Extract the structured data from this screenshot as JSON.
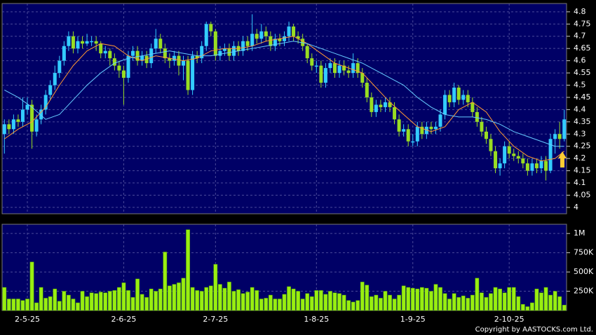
{
  "chart_data": [
    {
      "type": "candlestick",
      "up_color": "#33ccff",
      "down_color": "#99dd22",
      "open": [
        4.3,
        4.34,
        4.32,
        4.36,
        4.35,
        4.4,
        4.42,
        4.31,
        4.36,
        4.4,
        4.46,
        4.5,
        4.55,
        4.6,
        4.66,
        4.7,
        4.65,
        4.68,
        4.67,
        4.68,
        4.68,
        4.67,
        4.63,
        4.64,
        4.61,
        4.58,
        4.56,
        4.53,
        4.62,
        4.64,
        4.6,
        4.62,
        4.59,
        4.65,
        4.69,
        4.65,
        4.61,
        4.6,
        4.62,
        4.58,
        4.6,
        4.48,
        4.62,
        4.61,
        4.66,
        4.75,
        4.72,
        4.62,
        4.64,
        4.65,
        4.62,
        4.66,
        4.64,
        4.68,
        4.66,
        4.71,
        4.69,
        4.72,
        4.7,
        4.66,
        4.69,
        4.68,
        4.7,
        4.74,
        4.7,
        4.69,
        4.66,
        4.61,
        4.58,
        4.58,
        4.51,
        4.57,
        4.59,
        4.55,
        4.58,
        4.56,
        4.55,
        4.59,
        4.55,
        4.51,
        4.45,
        4.39,
        4.42,
        4.41,
        4.43,
        4.41,
        4.36,
        4.31,
        4.32,
        4.27,
        4.27,
        4.33,
        4.3,
        4.33,
        4.32,
        4.33,
        4.38,
        4.46,
        4.43,
        4.49,
        4.44,
        4.46,
        4.43,
        4.39,
        4.35,
        4.31,
        4.28,
        4.23,
        4.16,
        4.18,
        4.25,
        4.22,
        4.21,
        4.2,
        4.18,
        4.15,
        4.18,
        4.16,
        4.19,
        4.15,
        4.28,
        4.3,
        4.28
      ],
      "high": [
        4.36,
        4.36,
        4.38,
        4.38,
        4.45,
        4.45,
        4.44,
        4.38,
        4.42,
        4.48,
        4.52,
        4.58,
        4.62,
        4.68,
        4.72,
        4.72,
        4.7,
        4.7,
        4.71,
        4.7,
        4.7,
        4.68,
        4.66,
        4.65,
        4.63,
        4.6,
        4.58,
        4.64,
        4.66,
        4.66,
        4.64,
        4.64,
        4.67,
        4.73,
        4.71,
        4.67,
        4.63,
        4.64,
        4.64,
        4.62,
        4.62,
        4.64,
        4.64,
        4.68,
        4.76,
        4.76,
        4.73,
        4.66,
        4.67,
        4.67,
        4.68,
        4.68,
        4.7,
        4.7,
        4.79,
        4.73,
        4.75,
        4.74,
        4.72,
        4.71,
        4.71,
        4.72,
        4.76,
        4.75,
        4.72,
        4.71,
        4.67,
        4.63,
        4.6,
        4.6,
        4.59,
        4.61,
        4.61,
        4.6,
        4.6,
        4.58,
        4.63,
        4.61,
        4.57,
        4.53,
        4.47,
        4.44,
        4.44,
        4.45,
        4.45,
        4.43,
        4.38,
        4.34,
        4.34,
        4.3,
        4.35,
        4.35,
        4.35,
        4.35,
        4.35,
        4.4,
        4.48,
        4.48,
        4.51,
        4.5,
        4.48,
        4.48,
        4.45,
        4.41,
        4.37,
        4.33,
        4.3,
        4.25,
        4.2,
        4.27,
        4.27,
        4.24,
        4.23,
        4.22,
        4.2,
        4.2,
        4.2,
        4.21,
        4.21,
        4.3,
        4.32,
        4.35,
        4.4
      ],
      "low": [
        4.22,
        4.3,
        4.3,
        4.33,
        4.33,
        4.38,
        4.24,
        4.29,
        4.34,
        4.38,
        4.44,
        4.48,
        4.53,
        4.58,
        4.64,
        4.63,
        4.63,
        4.65,
        4.66,
        4.66,
        4.64,
        4.61,
        4.61,
        4.58,
        4.56,
        4.53,
        4.42,
        4.51,
        4.6,
        4.58,
        4.58,
        4.57,
        4.57,
        4.63,
        4.63,
        4.59,
        4.57,
        4.58,
        4.54,
        4.52,
        4.46,
        4.46,
        4.59,
        4.59,
        4.64,
        4.7,
        4.6,
        4.6,
        4.62,
        4.6,
        4.6,
        4.62,
        4.62,
        4.64,
        4.64,
        4.67,
        4.67,
        4.68,
        4.64,
        4.64,
        4.66,
        4.66,
        4.68,
        4.68,
        4.67,
        4.64,
        4.59,
        4.56,
        4.55,
        4.49,
        4.49,
        4.55,
        4.53,
        4.53,
        4.54,
        4.53,
        4.53,
        4.53,
        4.49,
        4.43,
        4.37,
        4.37,
        4.39,
        4.39,
        4.39,
        4.34,
        4.29,
        4.29,
        4.25,
        4.25,
        4.25,
        4.28,
        4.28,
        4.3,
        4.3,
        4.31,
        4.36,
        4.41,
        4.41,
        4.42,
        4.42,
        4.41,
        4.37,
        4.33,
        4.29,
        4.26,
        4.21,
        4.14,
        4.13,
        4.16,
        4.2,
        4.19,
        4.18,
        4.16,
        4.13,
        4.13,
        4.14,
        4.14,
        4.11,
        4.14,
        4.22,
        4.24,
        4.27
      ],
      "close": [
        4.34,
        4.32,
        4.36,
        4.35,
        4.4,
        4.42,
        4.31,
        4.36,
        4.4,
        4.46,
        4.5,
        4.55,
        4.6,
        4.66,
        4.7,
        4.65,
        4.68,
        4.67,
        4.68,
        4.68,
        4.67,
        4.63,
        4.64,
        4.61,
        4.58,
        4.56,
        4.53,
        4.62,
        4.64,
        4.6,
        4.62,
        4.59,
        4.65,
        4.69,
        4.65,
        4.61,
        4.6,
        4.62,
        4.58,
        4.6,
        4.48,
        4.62,
        4.61,
        4.66,
        4.75,
        4.72,
        4.62,
        4.64,
        4.65,
        4.62,
        4.66,
        4.64,
        4.68,
        4.66,
        4.71,
        4.69,
        4.72,
        4.7,
        4.66,
        4.69,
        4.68,
        4.7,
        4.74,
        4.7,
        4.69,
        4.66,
        4.61,
        4.58,
        4.58,
        4.51,
        4.57,
        4.59,
        4.55,
        4.58,
        4.56,
        4.55,
        4.59,
        4.55,
        4.51,
        4.45,
        4.39,
        4.42,
        4.41,
        4.43,
        4.41,
        4.36,
        4.31,
        4.32,
        4.27,
        4.27,
        4.33,
        4.3,
        4.33,
        4.32,
        4.33,
        4.38,
        4.46,
        4.43,
        4.49,
        4.44,
        4.46,
        4.43,
        4.39,
        4.35,
        4.31,
        4.28,
        4.23,
        4.16,
        4.18,
        4.25,
        4.22,
        4.21,
        4.2,
        4.18,
        4.15,
        4.18,
        4.16,
        4.19,
        4.15,
        4.28,
        4.3,
        4.28,
        4.36
      ],
      "lines": [
        {
          "color": "#ff9933",
          "x": [
            0,
            3,
            6,
            9,
            12,
            15,
            18,
            21,
            24,
            27,
            30,
            33,
            36,
            39,
            42,
            45,
            48,
            51,
            54,
            57,
            60,
            63,
            66,
            69,
            72,
            75,
            78,
            81,
            84,
            87,
            90,
            93,
            96,
            99,
            102,
            105,
            108,
            111,
            114,
            117,
            120,
            122
          ],
          "values": [
            4.28,
            4.32,
            4.35,
            4.41,
            4.5,
            4.58,
            4.64,
            4.67,
            4.66,
            4.62,
            4.6,
            4.62,
            4.61,
            4.6,
            4.61,
            4.64,
            4.65,
            4.65,
            4.66,
            4.68,
            4.69,
            4.7,
            4.67,
            4.63,
            4.59,
            4.57,
            4.55,
            4.49,
            4.43,
            4.38,
            4.33,
            4.31,
            4.33,
            4.4,
            4.43,
            4.39,
            4.31,
            4.25,
            4.21,
            4.19,
            4.2,
            4.23
          ]
        },
        {
          "color": "#66ccff",
          "x": [
            0,
            3,
            6,
            9,
            12,
            15,
            18,
            21,
            24,
            27,
            30,
            33,
            36,
            39,
            42,
            45,
            48,
            51,
            54,
            57,
            60,
            63,
            66,
            69,
            72,
            75,
            78,
            81,
            84,
            87,
            90,
            93,
            96,
            99,
            102,
            105,
            108,
            111,
            114,
            117,
            120,
            122
          ],
          "values": [
            4.48,
            4.45,
            4.41,
            4.36,
            4.38,
            4.44,
            4.5,
            4.55,
            4.59,
            4.61,
            4.62,
            4.63,
            4.64,
            4.63,
            4.62,
            4.62,
            4.63,
            4.64,
            4.65,
            4.66,
            4.67,
            4.68,
            4.67,
            4.65,
            4.63,
            4.61,
            4.59,
            4.56,
            4.53,
            4.5,
            4.45,
            4.41,
            4.38,
            4.37,
            4.37,
            4.36,
            4.34,
            4.31,
            4.29,
            4.27,
            4.25,
            4.25
          ]
        }
      ],
      "ylim": [
        3.974,
        4.834
      ],
      "yticks": [
        4,
        4.05,
        4.1,
        4.15,
        4.2,
        4.25,
        4.3,
        4.35,
        4.4,
        4.45,
        4.5,
        4.55,
        4.6,
        4.65,
        4.7,
        4.75,
        4.8
      ],
      "grid": true
    },
    {
      "type": "bar",
      "color": "#99ee11",
      "categories": [
        null,
        null,
        null,
        null,
        null,
        "2-5-25",
        null,
        null,
        null,
        null,
        null,
        null,
        null,
        null,
        null,
        null,
        null,
        null,
        null,
        null,
        null,
        null,
        null,
        null,
        null,
        null,
        "2-6-25",
        null,
        null,
        null,
        null,
        null,
        null,
        null,
        null,
        null,
        null,
        null,
        null,
        null,
        null,
        null,
        null,
        null,
        null,
        null,
        "2-7-25",
        null,
        null,
        null,
        null,
        null,
        null,
        null,
        null,
        null,
        null,
        null,
        null,
        null,
        null,
        null,
        null,
        null,
        null,
        null,
        null,
        null,
        "1-8-25",
        null,
        null,
        null,
        null,
        null,
        null,
        null,
        null,
        null,
        null,
        null,
        null,
        null,
        null,
        null,
        null,
        null,
        null,
        null,
        null,
        "1-9-25",
        null,
        null,
        null,
        null,
        null,
        null,
        null,
        null,
        null,
        null,
        null,
        null,
        null,
        null,
        null,
        null,
        null,
        null,
        null,
        null,
        "2-10-25",
        null,
        null,
        null,
        null,
        null,
        null,
        null,
        null,
        null,
        null,
        null,
        null
      ],
      "values": [
        300000,
        150000,
        150000,
        150000,
        130000,
        150000,
        630000,
        100000,
        300000,
        160000,
        180000,
        280000,
        120000,
        250000,
        200000,
        150000,
        100000,
        250000,
        180000,
        230000,
        220000,
        240000,
        230000,
        250000,
        260000,
        300000,
        360000,
        260000,
        170000,
        410000,
        210000,
        170000,
        280000,
        250000,
        280000,
        760000,
        320000,
        340000,
        360000,
        420000,
        1050000,
        300000,
        260000,
        250000,
        300000,
        320000,
        600000,
        340000,
        290000,
        370000,
        250000,
        270000,
        220000,
        240000,
        300000,
        260000,
        150000,
        160000,
        200000,
        150000,
        150000,
        210000,
        310000,
        280000,
        250000,
        150000,
        220000,
        180000,
        260000,
        260000,
        210000,
        250000,
        230000,
        220000,
        200000,
        130000,
        110000,
        130000,
        370000,
        330000,
        180000,
        200000,
        160000,
        250000,
        200000,
        150000,
        200000,
        320000,
        300000,
        290000,
        280000,
        300000,
        290000,
        250000,
        340000,
        300000,
        220000,
        150000,
        220000,
        170000,
        190000,
        160000,
        200000,
        420000,
        230000,
        170000,
        220000,
        300000,
        280000,
        230000,
        300000,
        300000,
        180000,
        80000,
        50000,
        100000,
        280000,
        230000,
        300000,
        200000,
        250000,
        180000,
        70000
      ],
      "ylim": [
        0,
        1120000
      ],
      "yticks": [
        {
          "value": 250000,
          "label": "250K"
        },
        {
          "value": 500000,
          "label": "500K"
        },
        {
          "value": 750000,
          "label": "750K"
        },
        {
          "value": 1000000,
          "label": "1M"
        }
      ],
      "grid": true,
      "annotation": "Copyright by AASTOCKS.com Ltd."
    }
  ]
}
